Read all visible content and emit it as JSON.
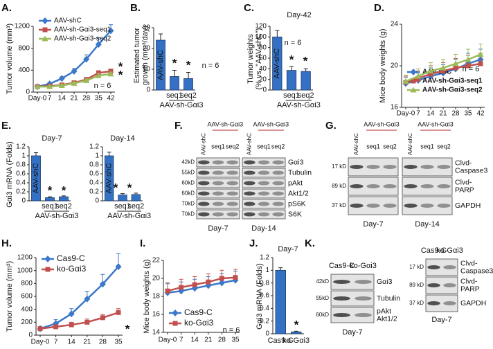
{
  "chart_data": [
    {
      "type": "line",
      "label": "A.",
      "ylabel": [
        "Tumor volume (mm³)"
      ],
      "categories": [
        "Day-0",
        "7",
        "14",
        "21",
        "28",
        "35",
        "42"
      ],
      "series": [
        {
          "name": "AAV-shC",
          "color": "#3b78c9",
          "marker": "diamond",
          "values": [
            100,
            150,
            250,
            380,
            600,
            870,
            1120
          ],
          "errors": [
            15,
            20,
            30,
            50,
            80,
            120,
            110
          ]
        },
        {
          "name": "AAV-sh-Gαi3-seq1",
          "color": "#c0504d",
          "marker": "square",
          "values": [
            100,
            110,
            130,
            170,
            230,
            350,
            380
          ],
          "errors": [
            10,
            15,
            20,
            25,
            30,
            40,
            40
          ]
        },
        {
          "name": "AAV-sh-Gαi3-seq2",
          "color": "#9bbb59",
          "marker": "triangle",
          "values": [
            100,
            100,
            120,
            160,
            210,
            300,
            330
          ],
          "errors": [
            10,
            10,
            20,
            20,
            30,
            40,
            35
          ]
        }
      ],
      "ylim": [
        0,
        1200
      ],
      "yticks": [
        0,
        400,
        800,
        1200
      ],
      "legend": "upper left",
      "annotations": [
        "n = 6",
        "*",
        "*"
      ]
    },
    {
      "type": "bar",
      "label": "B.",
      "ylabel": [
        "Estimated tumor",
        "growth (mm³/day)"
      ],
      "categories": [
        "AAV-shC",
        "seq1",
        "seq2"
      ],
      "group_label": "AAV-sh-Gαi3",
      "values": [
        24,
        6.5,
        5.5
      ],
      "errors": [
        3,
        3,
        3
      ],
      "color": "#3471c4",
      "category_colors": [
        "#ffffff",
        "#b5282c",
        "#b5282c"
      ],
      "ylim": [
        0,
        30
      ],
      "yticks": [
        0,
        10,
        20,
        30
      ],
      "annotations": [
        "n = 6",
        "*",
        "*"
      ]
    },
    {
      "type": "bar",
      "label": "C.",
      "ylabel": [
        "Tumor weights",
        "(% vs. \"AAV-shC\")"
      ],
      "categories": [
        "AAV-shC",
        "seq1",
        "seq2"
      ],
      "group_label": "AAV-sh-Gαi3",
      "values": [
        100,
        37,
        35
      ],
      "errors": [
        12,
        7,
        5
      ],
      "color": "#3471c4",
      "category_colors": [
        "#ffffff",
        "#b5282c",
        "#b5282c"
      ],
      "ylim": [
        0,
        120
      ],
      "yticks": [
        0,
        20,
        40,
        60,
        80,
        100,
        120
      ],
      "annotations": [
        "Day-42",
        "n = 6",
        "*",
        "*"
      ]
    },
    {
      "type": "line",
      "label": "D.",
      "ylabel": [
        "Mice body weights (g)"
      ],
      "categories": [
        "Day-0",
        "7",
        "14",
        "21",
        "28",
        "35",
        "42"
      ],
      "series": [
        {
          "name": "AAV-shC",
          "color": "#3b78c9",
          "marker": "diamond",
          "values": [
            18.3,
            18.6,
            19,
            19.3,
            19.7,
            20.2,
            20.6
          ],
          "errors": [
            0.6,
            0.7,
            0.8,
            0.8,
            0.9,
            1,
            1
          ]
        },
        {
          "name": "AAV-sh-Gαi3-seq1",
          "color": "#c0504d",
          "marker": "square",
          "values": [
            18.4,
            18.8,
            19.2,
            19.5,
            19.8,
            20,
            20.2
          ],
          "errors": [
            0.6,
            0.7,
            0.8,
            0.8,
            0.9,
            1,
            1
          ]
        },
        {
          "name": "AAV-sh-Gαi3-seq2",
          "color": "#9bbb59",
          "marker": "triangle",
          "values": [
            18.5,
            19,
            19.5,
            19.8,
            20.2,
            20.6,
            21.1
          ],
          "errors": [
            0.6,
            0.7,
            0.8,
            0.8,
            0.9,
            1,
            1
          ]
        }
      ],
      "ylim": [
        16,
        24
      ],
      "yticks": [
        16,
        20,
        24
      ],
      "legend": "lower left",
      "annotations": [
        "n = 6"
      ]
    },
    {
      "type": "bar",
      "label": "E.",
      "ylabel": [
        "Gαi3 mRNA (Folds)"
      ],
      "categories": [
        "AAV-shC",
        "seq1",
        "seq2"
      ],
      "group_label": "AAV-sh-Gαi3",
      "values": [
        1,
        0.07,
        0.09
      ],
      "errors": [
        0.07,
        0.02,
        0.02
      ],
      "color": "#3471c4",
      "category_colors": [
        "#ffffff",
        "#111111",
        "#111111"
      ],
      "ylim": [
        0,
        1.2
      ],
      "yticks": [
        0,
        0.2,
        0.4,
        0.6,
        0.8,
        1,
        1.2
      ],
      "annotations": [
        "Day-7",
        "*",
        "*"
      ]
    },
    {
      "type": "bar",
      "categories": [
        "AAV-shC",
        "seq1",
        "seq2"
      ],
      "group_label": "AAV-sh-Gαi3",
      "values": [
        1,
        0.13,
        0.14
      ],
      "errors": [
        0.08,
        0.03,
        0.03
      ],
      "color": "#3471c4",
      "category_colors": [
        "#ffffff",
        "#111111",
        "#111111"
      ],
      "ylim": [
        0,
        1.2
      ],
      "yticks": [
        0,
        0.2,
        0.4,
        0.6,
        0.8,
        1,
        1.2
      ],
      "annotations": [
        "Day-14",
        "*",
        "*"
      ]
    },
    {
      "type": "line",
      "label": "H.",
      "ylabel": [
        "Tumor volume (mm³)"
      ],
      "categories": [
        "Day-0",
        "7",
        "14",
        "21",
        "28",
        "35"
      ],
      "series": [
        {
          "name": "Cas9-C",
          "color": "#3b78c9",
          "marker": "diamond",
          "values": [
            100,
            180,
            330,
            560,
            790,
            1060
          ],
          "errors": [
            30,
            60,
            80,
            120,
            150,
            200
          ]
        },
        {
          "name": "ko-Gαi3",
          "color": "#c0504d",
          "marker": "square",
          "values": [
            100,
            130,
            160,
            200,
            270,
            350
          ],
          "errors": [
            20,
            30,
            40,
            50,
            50,
            60
          ]
        }
      ],
      "ylim": [
        0,
        1200
      ],
      "yticks": [
        0,
        200,
        400,
        600,
        800,
        1000,
        1200
      ],
      "legend": "upper left",
      "annotations": [
        "*"
      ]
    },
    {
      "type": "line",
      "label": "I.",
      "ylabel": [
        "Mice body weights (g)"
      ],
      "categories": [
        "Day-0",
        "7",
        "14",
        "21",
        "28",
        "35"
      ],
      "series": [
        {
          "name": "Cas9-C",
          "color": "#3b78c9",
          "marker": "diamond",
          "values": [
            18.4,
            18.6,
            18.9,
            19.2,
            19.5,
            19.8
          ],
          "errors": [
            1,
            1,
            1,
            1,
            1,
            1
          ]
        },
        {
          "name": "ko-Gαi3",
          "color": "#c0504d",
          "marker": "square",
          "values": [
            18.6,
            19,
            19.3,
            19.6,
            20,
            20.1
          ],
          "errors": [
            0.9,
            0.9,
            0.9,
            0.9,
            0.9,
            0.9
          ]
        }
      ],
      "ylim": [
        14,
        22
      ],
      "yticks": [
        14,
        16,
        18,
        20,
        22
      ],
      "legend": "lower left",
      "annotations": [
        "n = 6"
      ]
    },
    {
      "type": "bar",
      "label": "J.",
      "ylabel": [
        "Gαi3 mRNA (Folds)"
      ],
      "categories": [
        "Cas9-C",
        "ko-Gαi3"
      ],
      "values": [
        1,
        0.03
      ],
      "errors": [
        0.04,
        0.01
      ],
      "color": "#3471c4",
      "category_colors": [
        "#111111",
        "#b5282c"
      ],
      "ylim": [
        0,
        1.2
      ],
      "yticks": [
        0,
        0.2,
        0.4,
        0.6,
        0.8,
        1,
        1.2
      ],
      "annotations": [
        "Day-7",
        "*"
      ]
    }
  ],
  "blots": [
    {
      "label": "F.",
      "panels": [
        {
          "control": "AAV-shC",
          "group": "AAV-sh-Gαi3",
          "lanes": [
            "seq1",
            "seq2"
          ],
          "day": "Day-7"
        },
        {
          "control": "AAV-shC",
          "group": "AAV-sh-Gαi3",
          "lanes": [
            "seq1",
            "seq2"
          ],
          "day": "Day-14"
        }
      ],
      "kd": [
        "42kD",
        "55kD",
        "60kD",
        "60kD",
        "70kD",
        "70kD"
      ],
      "proteins": [
        [
          "Gαi3"
        ],
        [
          "Tubulin"
        ],
        [
          "pAkt"
        ],
        [
          "Akt1/2"
        ],
        [
          "pS6K"
        ],
        [
          "S6K"
        ]
      ]
    },
    {
      "label": "G.",
      "panels": [
        {
          "control": "AAV-shC",
          "group": "AAV-sh-Gαi3",
          "lanes": [
            "seq1",
            "seq2"
          ],
          "day": "Day-7"
        },
        {
          "control": "AAV-shC",
          "group": "AAV-sh-Gαi3",
          "lanes": [
            "seq1",
            "seq2"
          ],
          "day": "Day-14"
        }
      ],
      "kd": [
        "17 kD",
        "89 kD",
        "37 kD"
      ],
      "proteins": [
        [
          "Clvd-",
          "Caspase3"
        ],
        [
          "Clvd-",
          "PARP"
        ],
        [
          "GAPDH"
        ]
      ]
    },
    {
      "label": "K.",
      "panels": [
        {
          "control": "Cas9-C",
          "group": "ko-Gαi3",
          "day": "Day-7"
        }
      ],
      "kd": [
        "42kD",
        "55kD",
        "60kD"
      ],
      "proteins": [
        [
          "Gαi3"
        ],
        [
          "Tubulin"
        ],
        [
          "pAkt",
          "Akt1/2"
        ]
      ]
    },
    {
      "panels": [
        {
          "control": "Cas9-C",
          "group": "ko-Gαi3",
          "day": "Day-7"
        }
      ],
      "kd": [
        "17 kD",
        "89 kD",
        "37 kD"
      ],
      "proteins": [
        [
          "Clvd-",
          "Caspase3"
        ],
        [
          "Clvd-",
          "PARP"
        ],
        [
          "GAPDH"
        ]
      ]
    }
  ]
}
